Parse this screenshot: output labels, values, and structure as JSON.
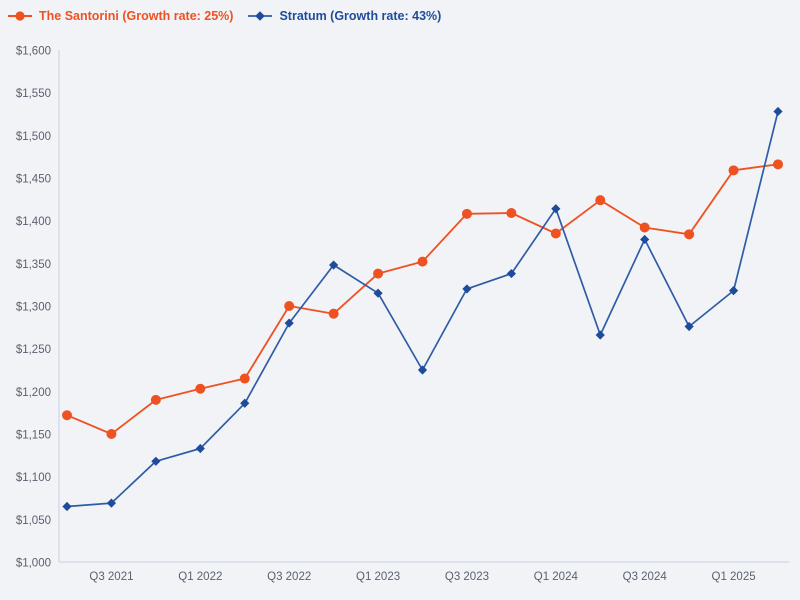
{
  "page": {
    "background_color": "#F1F3F6"
  },
  "legend": {
    "position": "top-left",
    "items": [
      {
        "label": "The Santorini (Growth rate: 25%)",
        "marker": "circle",
        "color": "#EF5222"
      },
      {
        "label": "Stratum (Growth rate: 43%)",
        "marker": "diamond",
        "color": "#1F4C9C"
      }
    ]
  },
  "chart_data": {
    "type": "line",
    "title": "",
    "xlabel": "",
    "ylabel": "",
    "grid": false,
    "legend_position": "top-left",
    "background": "#F1F3F6",
    "axis_color": "#C5D1E5",
    "tick_text_color": "#5A6170",
    "x_tick_labels": [
      "Q3 2021",
      "Q1 2022",
      "Q3 2022",
      "Q1 2023",
      "Q3 2023",
      "Q1 2024",
      "Q3 2024",
      "Q1 2025"
    ],
    "x_tick_indices": [
      1,
      3,
      5,
      7,
      9,
      11,
      13,
      15
    ],
    "x_point_count": 17,
    "series": [
      {
        "name": "The Santorini (Growth rate: 25%)",
        "marker": "circle",
        "line_color": "#EF5222",
        "marker_color": "#EF5222",
        "line_width": 1.8,
        "values": [
          1172,
          1150,
          1190,
          1203,
          1215,
          1300,
          1291,
          1338,
          1352,
          1408,
          1409,
          1385,
          1424,
          1392,
          1384,
          1459,
          1466
        ]
      },
      {
        "name": "Stratum (Growth rate: 43%)",
        "marker": "diamond",
        "line_color": "#2E5CA6",
        "marker_color": "#1E4B9A",
        "line_width": 1.7,
        "values": [
          1065,
          1069,
          1118,
          1133,
          1186,
          1280,
          1348,
          1315,
          1225,
          1320,
          1338,
          1414,
          1266,
          1378,
          1276,
          1318,
          1528
        ]
      }
    ],
    "y_axis": {
      "min": 1000,
      "max": 1600,
      "tick_step": 50,
      "tick_labels": [
        "$1,000",
        "$1,050",
        "$1,100",
        "$1,150",
        "$1,200",
        "$1,250",
        "$1,300",
        "$1,350",
        "$1,400",
        "$1,450",
        "$1,500",
        "$1,550",
        "$1,600"
      ]
    }
  }
}
